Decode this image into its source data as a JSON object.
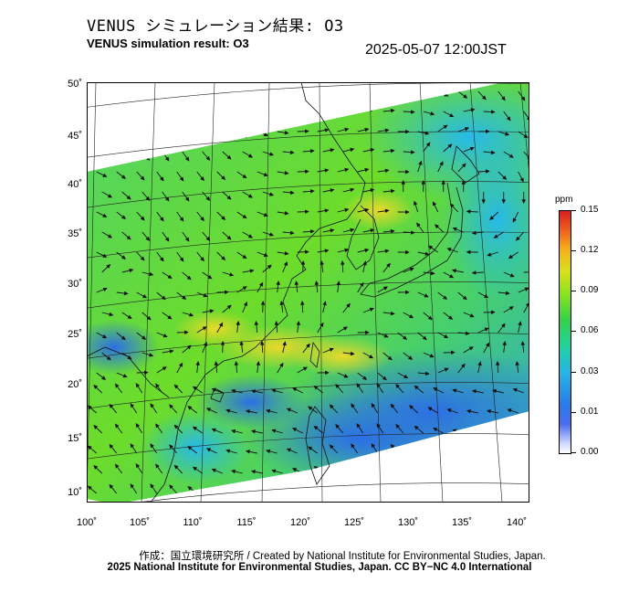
{
  "header": {
    "title_jp": "VENUS シミュレーション結果: O3",
    "title_en": "VENUS simulation result: O3",
    "timestamp": "2025-05-07 12:00JST"
  },
  "map": {
    "lat_labels": [
      "50˚",
      "45˚",
      "40˚",
      "35˚",
      "30˚",
      "25˚",
      "20˚",
      "15˚",
      "10˚"
    ],
    "lon_labels": [
      "100˚",
      "105˚",
      "110˚",
      "115˚",
      "120˚",
      "125˚",
      "130˚",
      "135˚",
      "140˚"
    ]
  },
  "colorbar": {
    "unit": "ppm",
    "labels": [
      "0.15",
      "0.12",
      "0.09",
      "0.06",
      "0.03",
      "0.01",
      "0.00"
    ],
    "colors": {
      "low": "#4a6cf0",
      "mid": "#34d24a",
      "high": "#d81e1e",
      "sea_blue": "#2a7be8",
      "cyan": "#27b4e6",
      "green": "#6ddc2a",
      "yellow": "#d8e01a"
    }
  },
  "footer": {
    "credit_line1": "作成：国立環境研究所 / Created by National Institute for Environmental Studies, Japan.",
    "credit_line2": "2025 National Institute for Environmental Studies, Japan. CC BY−NC 4.0 International"
  }
}
